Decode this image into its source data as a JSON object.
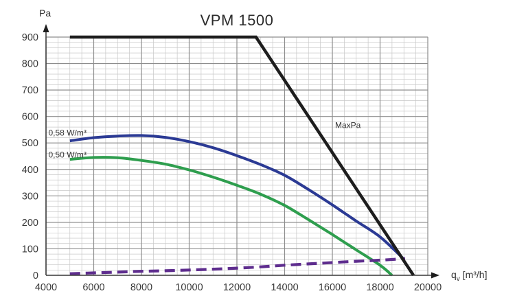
{
  "title": "VPM 1500",
  "y_axis_unit": "Pa",
  "x_axis_label": {
    "symbol": "q",
    "sub": "v",
    "unit": " [m³/h]"
  },
  "colors": {
    "curve_blue": "#2b3a94",
    "curve_green": "#2e9e4e",
    "curve_purple": "#5e2d8e",
    "curve_black": "#1d1d1d",
    "grid_major": "#8d8d8d",
    "grid_minor": "#c8c8c8",
    "axis": "#3f3f3f",
    "text": "#3a3a3a"
  },
  "chart_data": {
    "type": "line",
    "title": "VPM 1500",
    "xlabel": "qv [m3/h]",
    "ylabel": "Pa",
    "xlim": [
      4000,
      20000
    ],
    "ylim": [
      0,
      900
    ],
    "x_major_ticks": [
      4000,
      6000,
      8000,
      10000,
      12000,
      14000,
      16000,
      18000,
      20000
    ],
    "x_minor_step": 500,
    "y_major_ticks": [
      0,
      100,
      200,
      300,
      400,
      500,
      600,
      700,
      800,
      900
    ],
    "y_minor_step": 20,
    "grid": true,
    "legend_position": "none",
    "series": [
      {
        "name": "0,50 W/m³",
        "color": "#2e9e4e",
        "style": "solid",
        "smooth": true,
        "width": 4,
        "points": [
          [
            5000,
            438
          ],
          [
            6000,
            445
          ],
          [
            7000,
            444
          ],
          [
            8000,
            434
          ],
          [
            9000,
            420
          ],
          [
            10000,
            398
          ],
          [
            11000,
            371
          ],
          [
            12000,
            340
          ],
          [
            13000,
            306
          ],
          [
            14000,
            264
          ],
          [
            15000,
            210
          ],
          [
            16000,
            154
          ],
          [
            17000,
            96
          ],
          [
            18000,
            38
          ],
          [
            18500,
            0
          ]
        ]
      },
      {
        "name": "0,58 W/m³",
        "color": "#2b3a94",
        "style": "solid",
        "smooth": true,
        "width": 4,
        "points": [
          [
            5000,
            508
          ],
          [
            6000,
            520
          ],
          [
            7000,
            526
          ],
          [
            8000,
            528
          ],
          [
            9000,
            521
          ],
          [
            10000,
            505
          ],
          [
            11000,
            482
          ],
          [
            12000,
            452
          ],
          [
            13000,
            418
          ],
          [
            14000,
            378
          ],
          [
            15000,
            324
          ],
          [
            16000,
            266
          ],
          [
            17000,
            205
          ],
          [
            18000,
            145
          ],
          [
            18950,
            65
          ]
        ]
      },
      {
        "name": "",
        "color": "#5e2d8e",
        "style": "dashed",
        "smooth": true,
        "width": 4.2,
        "points": [
          [
            5000,
            6
          ],
          [
            6000,
            9
          ],
          [
            7000,
            12
          ],
          [
            8000,
            15
          ],
          [
            9000,
            17
          ],
          [
            10000,
            20
          ],
          [
            11000,
            23
          ],
          [
            12000,
            27
          ],
          [
            13000,
            32
          ],
          [
            14000,
            38
          ],
          [
            15000,
            43
          ],
          [
            16000,
            48
          ],
          [
            17000,
            53
          ],
          [
            18000,
            57
          ],
          [
            19050,
            63
          ]
        ]
      },
      {
        "name": "MaxPa",
        "color": "#1d1d1d",
        "style": "solid",
        "smooth": false,
        "width": 4.5,
        "points": [
          [
            5000,
            900
          ],
          [
            12800,
            900
          ],
          [
            19400,
            0
          ]
        ]
      }
    ],
    "annotations": [
      {
        "text": "0,58 W/m³",
        "x": 4101,
        "y": 556
      },
      {
        "text": "0,50 W/m³",
        "x": 4101,
        "y": 473
      },
      {
        "text": "MaxPa",
        "x": 16115,
        "y": 585
      }
    ]
  }
}
